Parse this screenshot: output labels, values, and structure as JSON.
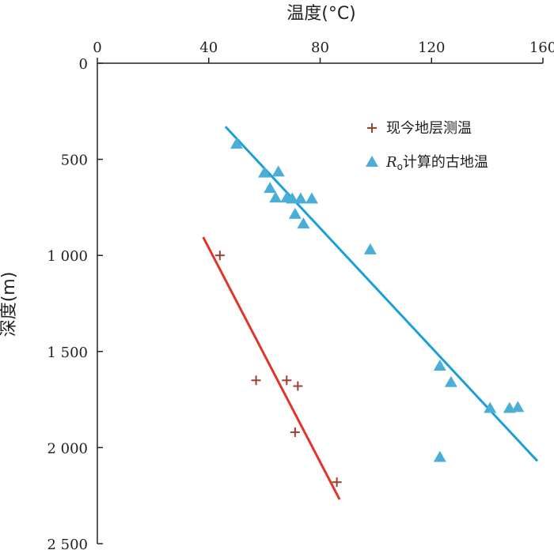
{
  "chart_data": {
    "type": "scatter",
    "xlabel": "温度(°C)",
    "ylabel": "深度(m)",
    "xlim": [
      0,
      160
    ],
    "ylim": [
      0,
      2500
    ],
    "x_axis_position": "top",
    "y_axis_inverted": true,
    "x_ticks": [
      0,
      40,
      80,
      120,
      160
    ],
    "y_ticks": [
      0,
      500,
      1000,
      1500,
      2000,
      2500
    ],
    "x_tick_labels": [
      "0",
      "40",
      "80",
      "120",
      "160"
    ],
    "y_tick_labels": [
      "0",
      "500",
      "1 000",
      "1 500",
      "2 000",
      "2 500"
    ],
    "grid": false,
    "legend_position": "top-right",
    "series": [
      {
        "name": "现今地层测温",
        "marker": "plus",
        "color": "#a0402e",
        "points": [
          [
            44,
            1000
          ],
          [
            57,
            1650
          ],
          [
            68,
            1650
          ],
          [
            72,
            1680
          ],
          [
            71,
            1920
          ],
          [
            86,
            2180
          ]
        ],
        "trend_line": {
          "color": "#e0352b",
          "from": [
            38,
            905
          ],
          "to": [
            87,
            2270
          ]
        }
      },
      {
        "name": "Ro计算的古地温",
        "name_italic": "R",
        "name_subscript": "o",
        "name_rest": "计算的古地温",
        "marker": "triangle",
        "color": "#4aaed6",
        "points": [
          [
            50,
            420
          ],
          [
            60,
            570
          ],
          [
            65,
            565
          ],
          [
            62,
            650
          ],
          [
            64,
            700
          ],
          [
            68,
            700
          ],
          [
            70,
            705
          ],
          [
            73,
            705
          ],
          [
            77,
            705
          ],
          [
            71,
            785
          ],
          [
            74,
            835
          ],
          [
            98,
            970
          ],
          [
            123,
            1575
          ],
          [
            127,
            1660
          ],
          [
            141,
            1795
          ],
          [
            148,
            1795
          ],
          [
            151,
            1790
          ],
          [
            123,
            2050
          ]
        ],
        "trend_line": {
          "color": "#1aa0d8",
          "from": [
            46,
            330
          ],
          "to": [
            158,
            2070
          ]
        }
      }
    ]
  }
}
